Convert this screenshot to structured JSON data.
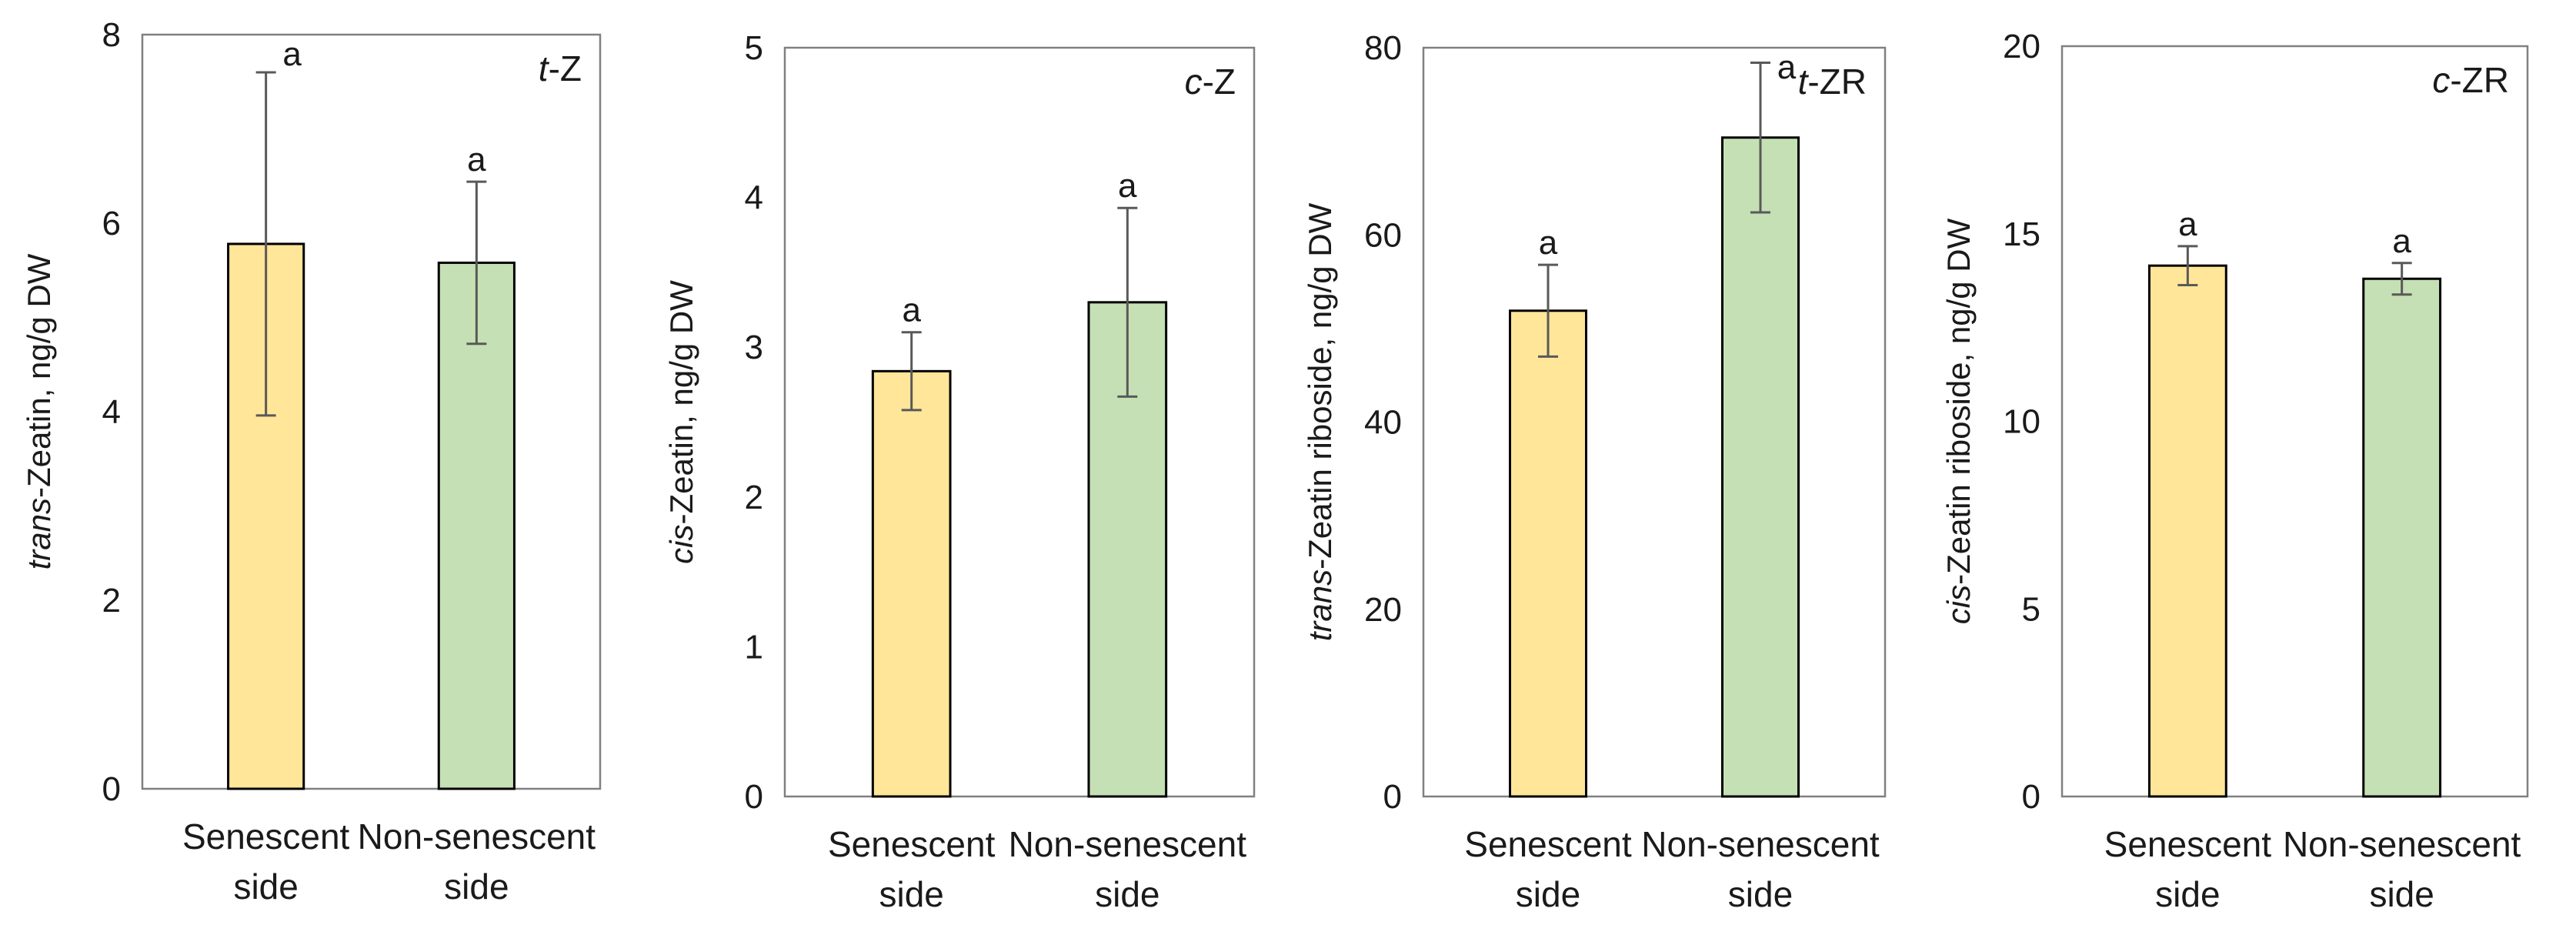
{
  "chart_data": [
    {
      "type": "bar",
      "panel_tag": {
        "italic": "t",
        "rest": "-Z"
      },
      "ylabel": {
        "italic": "trans",
        "rest": "-Zeatin, ng/g DW"
      },
      "ylim": [
        0,
        8
      ],
      "yticks": [
        0,
        2,
        4,
        6,
        8
      ],
      "categories": [
        [
          "Senescent",
          "side"
        ],
        [
          "Non-senescent",
          "side"
        ]
      ],
      "values": [
        5.78,
        5.58
      ],
      "errors": [
        1.82,
        0.86
      ],
      "significance": [
        "a",
        "a"
      ],
      "colors": [
        "#FFE699",
        "#C5E0B4"
      ]
    },
    {
      "type": "bar",
      "panel_tag": {
        "italic": "c",
        "rest": "-Z"
      },
      "ylabel": {
        "italic": "cis",
        "rest": "-Zeatin, ng/g DW"
      },
      "ylim": [
        0,
        5
      ],
      "yticks": [
        0,
        1,
        2,
        3,
        4,
        5
      ],
      "categories": [
        [
          "Senescent",
          "side"
        ],
        [
          "Non-senescent",
          "side"
        ]
      ],
      "values": [
        2.84,
        3.3
      ],
      "errors": [
        0.26,
        0.63
      ],
      "significance": [
        "a",
        "a"
      ],
      "colors": [
        "#FFE699",
        "#C5E0B4"
      ]
    },
    {
      "type": "bar",
      "panel_tag": {
        "italic": "t",
        "rest": "-ZR"
      },
      "ylabel": {
        "italic": "trans",
        "rest": "-Zeatin riboside, ng/g DW"
      },
      "ylim": [
        0,
        80
      ],
      "yticks": [
        0,
        20,
        40,
        60,
        80
      ],
      "categories": [
        [
          "Senescent",
          "side"
        ],
        [
          "Non-senescent",
          "side"
        ]
      ],
      "values": [
        51.9,
        70.4
      ],
      "errors": [
        4.9,
        8.0
      ],
      "significance": [
        "a",
        "a"
      ],
      "colors": [
        "#FFE699",
        "#C5E0B4"
      ]
    },
    {
      "type": "bar",
      "panel_tag": {
        "italic": "c",
        "rest": "-ZR"
      },
      "ylabel": {
        "italic": "cis",
        "rest": "-Zeatin riboside, ng/g DW"
      },
      "ylim": [
        0,
        20
      ],
      "yticks": [
        0,
        5,
        10,
        15,
        20
      ],
      "categories": [
        [
          "Senescent",
          "side"
        ],
        [
          "Non-senescent",
          "side"
        ]
      ],
      "values": [
        14.15,
        13.8
      ],
      "errors": [
        0.52,
        0.42
      ],
      "significance": [
        "a",
        "a"
      ],
      "colors": [
        "#FFE699",
        "#C5E0B4"
      ]
    }
  ]
}
